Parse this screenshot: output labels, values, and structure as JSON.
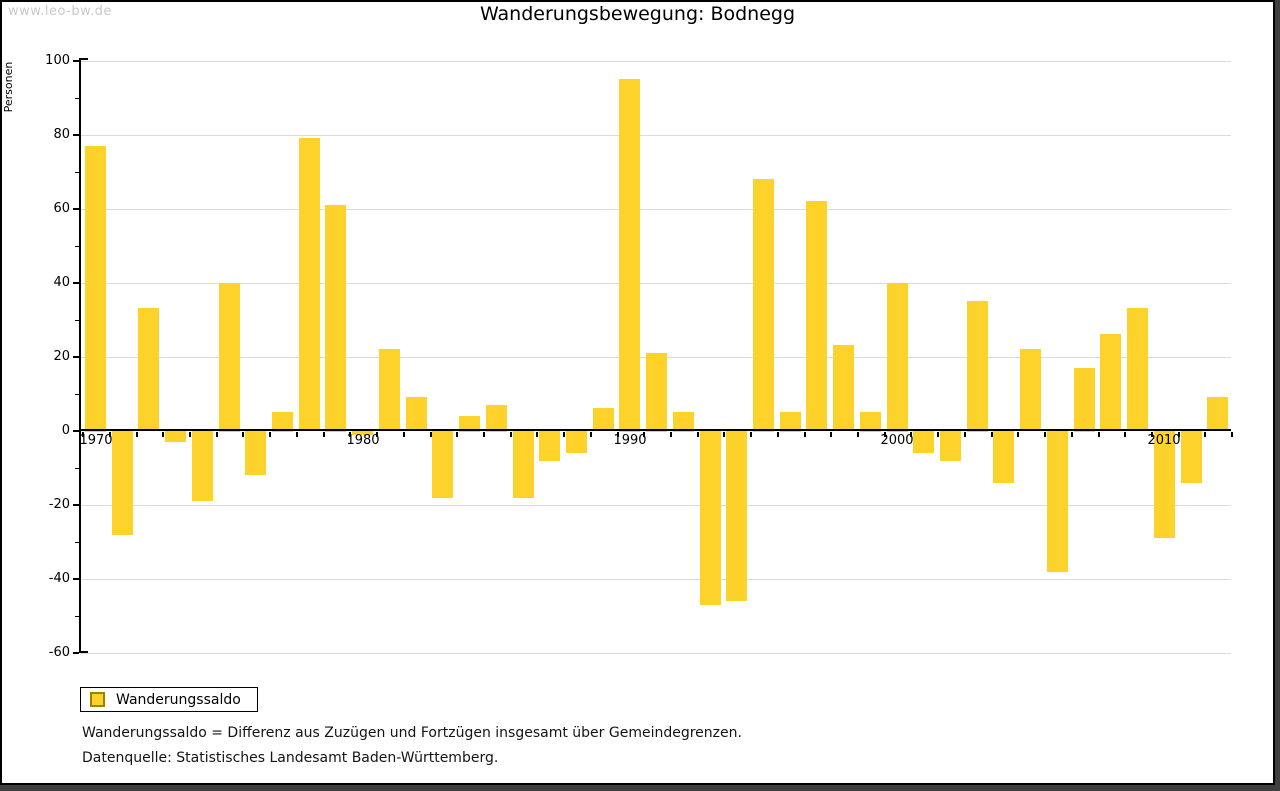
{
  "watermark": "www.leo-bw.de",
  "title": "Wanderungsbewegung: Bodnegg",
  "y_axis": {
    "label": "Personen",
    "tick_labels": [
      "100",
      "80",
      "60",
      "40",
      "20",
      "0",
      "-20",
      "-40",
      "-60"
    ],
    "tick_values": [
      100,
      80,
      60,
      40,
      20,
      0,
      -20,
      -40,
      -60
    ]
  },
  "x_axis": {
    "decade_tick_labels": [
      "1970",
      "1980",
      "1990",
      "2000",
      "2010"
    ],
    "decade_tick_years": [
      1970,
      1980,
      1990,
      2000,
      2010
    ]
  },
  "legend": {
    "label": "Wanderungssaldo",
    "swatch_color": "#FCD22B"
  },
  "notes": [
    "Wanderungssaldo = Differenz aus Zuzügen und Fortzügen insgesamt über Gemeindegrenzen.",
    "Datenquelle: Statistisches Landesamt Baden-Württemberg."
  ],
  "colors": {
    "bar": "#FCD22B",
    "bar_border": "#A08000",
    "gridline": "#DBDBDB",
    "axis": "#000000",
    "watermark": "#C9C9C9",
    "frame_shadow": "#3F3F3F"
  },
  "chart_data": {
    "type": "bar",
    "title": "Wanderungsbewegung: Bodnegg",
    "series_name": "Wanderungssaldo",
    "ylabel": "Personen",
    "ylim": [
      -60,
      100
    ],
    "grid": true,
    "legend_position": "bottom-left",
    "x": [
      1970,
      1971,
      1972,
      1973,
      1974,
      1975,
      1976,
      1977,
      1978,
      1979,
      1980,
      1981,
      1982,
      1983,
      1984,
      1985,
      1986,
      1987,
      1988,
      1989,
      1990,
      1991,
      1992,
      1993,
      1994,
      1995,
      1996,
      1997,
      1998,
      1999,
      2000,
      2001,
      2002,
      2003,
      2004,
      2005,
      2006,
      2007,
      2008,
      2009,
      2010,
      2011,
      2012
    ],
    "values": [
      77,
      -28,
      33,
      -3,
      -19,
      40,
      -12,
      5,
      79,
      61,
      -1,
      22,
      9,
      -18,
      4,
      7,
      -18,
      -8,
      -6,
      6,
      95,
      21,
      5,
      -47,
      -46,
      68,
      5,
      62,
      23,
      5,
      40,
      -6,
      -8,
      35,
      -14,
      22,
      -38,
      17,
      26,
      33,
      -29,
      -14,
      9
    ]
  }
}
